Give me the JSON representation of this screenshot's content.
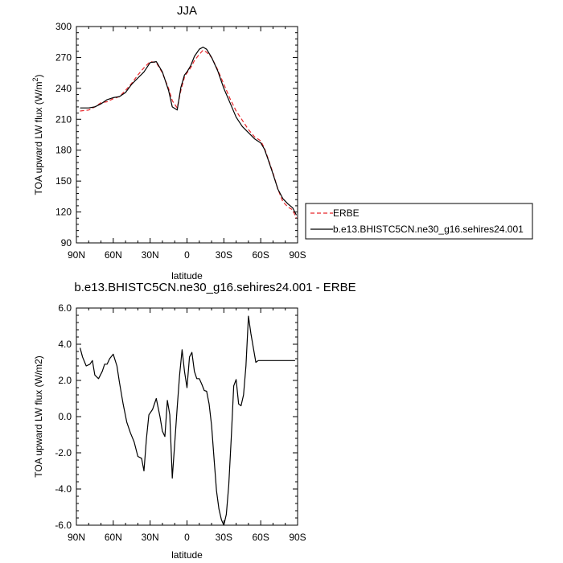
{
  "chart_data": [
    {
      "type": "line",
      "title": "JJA",
      "xlabel": "latitude",
      "ylabel_main": "TOA upward LW flux (W/m",
      "ylabel_sup": "2",
      "ylabel_end": ")",
      "xlim": [
        90,
        -90
      ],
      "ylim": [
        90,
        300
      ],
      "xticks": [
        90,
        60,
        30,
        0,
        -30,
        -60,
        -90
      ],
      "xtick_labels": [
        "90N",
        "60N",
        "30N",
        "0",
        "30S",
        "60S",
        "90S"
      ],
      "yticks": [
        90,
        120,
        150,
        180,
        210,
        240,
        270,
        300
      ],
      "ytick_labels": [
        "90",
        "120",
        "150",
        "180",
        "210",
        "240",
        "270",
        "300"
      ],
      "legend_position": "right",
      "series": [
        {
          "name": "ERBE",
          "color": "#e8262a",
          "dash": "dashed",
          "x": [
            87,
            80,
            75,
            70,
            65,
            60,
            55,
            50,
            45,
            40,
            35,
            30,
            25,
            20,
            15,
            12,
            8,
            5,
            2,
            0,
            -3,
            -6,
            -10,
            -13,
            -16,
            -20,
            -25,
            -30,
            -35,
            -40,
            -45,
            -50,
            -55,
            -60,
            -63,
            -66,
            -70,
            -74,
            -78,
            -82,
            -86,
            -89
          ],
          "y": [
            218,
            219,
            222,
            226,
            227,
            230,
            232,
            238,
            245,
            253,
            260,
            266,
            265,
            255,
            240,
            228,
            221,
            238,
            251,
            255,
            260,
            267,
            273,
            277,
            275,
            270,
            258,
            244,
            230,
            218,
            209,
            200,
            193,
            189,
            182,
            172,
            158,
            142,
            130,
            125,
            122,
            114
          ]
        },
        {
          "name": "b.e13.BHISTC5CN.ne30_g16.sehires24.001",
          "color": "#000000",
          "dash": "solid",
          "x": [
            87,
            80,
            75,
            70,
            65,
            60,
            55,
            50,
            45,
            40,
            35,
            30,
            25,
            20,
            15,
            12,
            8,
            5,
            2,
            0,
            -3,
            -6,
            -10,
            -13,
            -16,
            -20,
            -25,
            -30,
            -35,
            -40,
            -45,
            -50,
            -55,
            -60,
            -63,
            -66,
            -70,
            -74,
            -78,
            -82,
            -86,
            -89
          ],
          "y": [
            221,
            221,
            222,
            225,
            229,
            231,
            232,
            236,
            244,
            250,
            256,
            265,
            266,
            256,
            238,
            222,
            219,
            241,
            253,
            256,
            262,
            271,
            278,
            280,
            278,
            270,
            257,
            240,
            226,
            212,
            203,
            197,
            191,
            187,
            181,
            171,
            157,
            142,
            133,
            128,
            124,
            117
          ]
        }
      ]
    },
    {
      "type": "line",
      "title": "b.e13.BHISTC5CN.ne30_g16.sehires24.001 - ERBE",
      "xlabel": "latitude",
      "ylabel_main": "TOA upward LW flux (W/m2)",
      "xlim": [
        90,
        -90
      ],
      "ylim": [
        -6.0,
        6.0
      ],
      "xticks": [
        90,
        60,
        30,
        0,
        -30,
        -60,
        -90
      ],
      "xtick_labels": [
        "90N",
        "60N",
        "30N",
        "0",
        "30S",
        "60S",
        "90S"
      ],
      "yticks": [
        6.0,
        4.0,
        2.0,
        0.0,
        -2.0,
        -4.0,
        -6.0
      ],
      "ytick_labels": [
        "6.0",
        "4.0",
        "2.0",
        "0.0",
        "-2.0",
        "-4.0",
        "-6.0"
      ],
      "series": [
        {
          "color": "#000000",
          "dash": "solid",
          "x": [
            87,
            85,
            82,
            79,
            77,
            75,
            72,
            69,
            67,
            65,
            63,
            60,
            57,
            55,
            52,
            49,
            46,
            43,
            40,
            37,
            35,
            33,
            31,
            28,
            25,
            22,
            20,
            18,
            16,
            14,
            12,
            10,
            8,
            6,
            4,
            2,
            0,
            -2,
            -4,
            -6,
            -8,
            -10,
            -12,
            -14,
            -16,
            -18,
            -20,
            -22,
            -24,
            -26,
            -28,
            -30,
            -32,
            -34,
            -36,
            -38,
            -40,
            -42,
            -44,
            -46,
            -48,
            -50,
            -52,
            -54,
            -56,
            -58,
            -60,
            -62,
            -64,
            -66,
            -68,
            -70,
            -72,
            -74,
            -76,
            -78,
            -80,
            -82,
            -84,
            -86,
            -88
          ],
          "y": [
            3.8,
            3.3,
            2.8,
            2.9,
            3.1,
            2.3,
            2.1,
            2.5,
            2.9,
            2.9,
            3.2,
            3.45,
            2.8,
            1.9,
            0.7,
            -0.3,
            -0.9,
            -1.4,
            -2.2,
            -2.3,
            -3.0,
            -1.2,
            0.1,
            0.4,
            1.0,
            0.0,
            -0.8,
            -1.1,
            0.9,
            0.1,
            -3.4,
            -1.5,
            0.5,
            2.3,
            3.7,
            2.5,
            1.6,
            3.3,
            3.55,
            2.5,
            2.1,
            2.1,
            1.8,
            1.45,
            1.4,
            0.7,
            -0.5,
            -2.3,
            -4.1,
            -5.1,
            -5.7,
            -6.0,
            -5.4,
            -3.8,
            -1.2,
            1.7,
            2.05,
            0.7,
            0.6,
            1.2,
            2.8,
            5.55,
            4.6,
            3.8,
            3.0,
            3.1,
            3.1,
            3.1,
            3.1,
            3.1,
            3.1,
            3.1,
            3.1,
            3.1,
            3.1,
            3.1,
            3.1,
            3.1,
            3.1,
            3.1,
            3.1
          ]
        }
      ]
    }
  ]
}
